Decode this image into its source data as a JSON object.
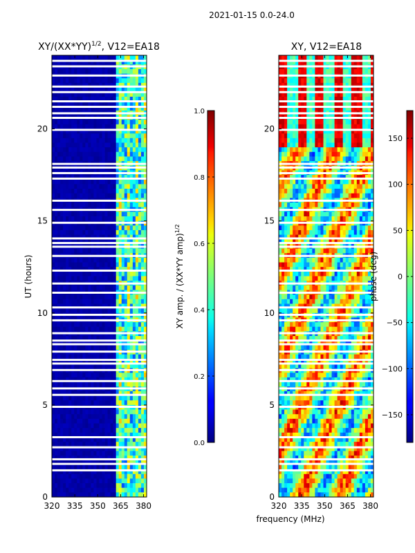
{
  "figure": {
    "suptitle": "2021-01-15 0.0-24.0",
    "xlabel_shared": "frequency (MHz)"
  },
  "chart_data": [
    {
      "type": "heatmap",
      "title_main": "XY/(XX*YY)",
      "title_sup": "1/2",
      "title_rest": ", V12=EA18",
      "ylabel": "UT (hours)",
      "x_range": [
        320,
        382
      ],
      "y_range": [
        0,
        24
      ],
      "x_ticks": [
        "320",
        "335",
        "350",
        "365",
        "380"
      ],
      "x_tick_values": [
        320,
        335,
        350,
        365,
        380
      ],
      "y_ticks": [
        "0",
        "5",
        "10",
        "15",
        "20"
      ],
      "y_tick_values": [
        0,
        5,
        10,
        15,
        20
      ],
      "colorbar": {
        "label_main": "XY amp. / (XX*YY amp)",
        "label_sup": "1/2",
        "range": [
          0.0,
          1.0
        ],
        "ticks": [
          "0.0",
          "0.2",
          "0.4",
          "0.6",
          "0.8",
          "1.0"
        ],
        "tick_values": [
          0.0,
          0.2,
          0.4,
          0.6,
          0.8,
          1.0
        ],
        "colormap": "jet"
      }
    },
    {
      "type": "heatmap",
      "title": "XY, V12=EA18",
      "x_range": [
        320,
        382
      ],
      "y_range": [
        0,
        24
      ],
      "x_ticks": [
        "320",
        "335",
        "350",
        "365",
        "380"
      ],
      "x_tick_values": [
        320,
        335,
        350,
        365,
        380
      ],
      "y_ticks": [
        "0",
        "5",
        "10",
        "15",
        "20"
      ],
      "y_tick_values": [
        0,
        5,
        10,
        15,
        20
      ],
      "colorbar": {
        "label": "phase (deg)",
        "range": [
          -180,
          180
        ],
        "ticks": [
          "−150",
          "−100",
          "−50",
          "0",
          "50",
          "100",
          "150"
        ],
        "tick_values": [
          -150,
          -100,
          -50,
          0,
          50,
          100,
          150
        ],
        "colormap": "jet"
      }
    }
  ],
  "flagged_ut_hours": [
    1.45,
    1.8,
    2.05,
    2.7,
    3.25,
    4.9,
    5.55,
    5.9,
    6.3,
    6.9,
    7.25,
    7.45,
    7.9,
    8.3,
    8.5,
    8.9,
    9.6,
    9.9,
    10.3,
    11.1,
    11.6,
    12.3,
    13.1,
    13.6,
    13.8,
    14.05,
    14.9,
    15.6,
    16.1,
    17.3,
    17.6,
    17.9,
    18.1,
    19.95,
    20.6,
    20.85,
    21.2,
    21.5,
    22.0,
    22.3,
    22.9,
    23.4,
    23.7
  ]
}
